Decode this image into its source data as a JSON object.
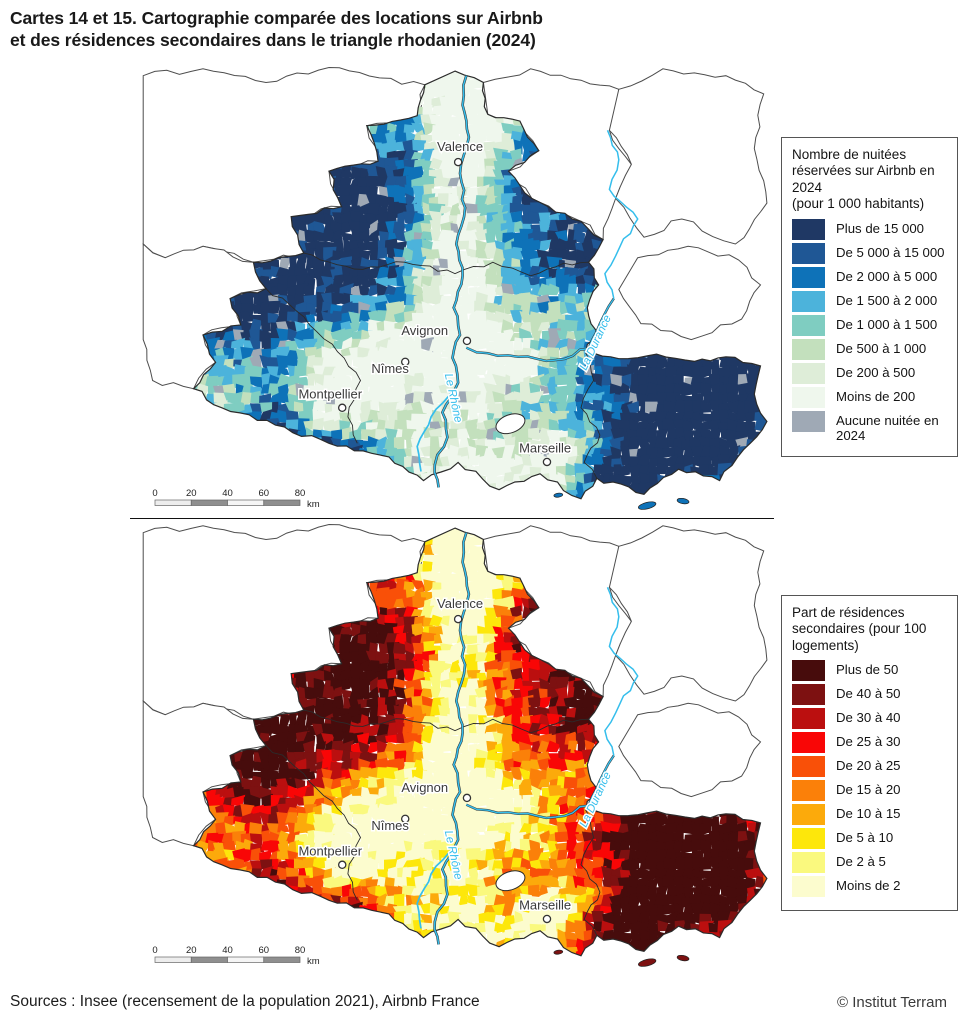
{
  "title": {
    "line1": "Cartes 14 et 15. Cartographie comparée des locations sur Airbnb",
    "line2": "et des résidences secondaires dans le triangle rhodanien (2024)"
  },
  "footer": {
    "sources": "Sources : Insee (recensement de la population 2021), Airbnb France",
    "credit": "© Institut Terram"
  },
  "cities": [
    "Valence",
    "Avignon",
    "Nîmes",
    "Montpellier",
    "Marseille"
  ],
  "rivers": [
    "Le Rhône",
    "La Durance"
  ],
  "river_color": "#35BEEC",
  "scalebar": {
    "ticks": [
      "0",
      "20",
      "40",
      "60",
      "80"
    ],
    "unit": "km"
  },
  "map_airbnb": {
    "legend_title": "Nombre de nuitées réservées sur Airbnb en 2024",
    "legend_subtitle": "(pour 1 000 habitants)",
    "classes": [
      {
        "label": "Plus de 15 000",
        "color": "#1F3864"
      },
      {
        "label": "De 5 000 à 15 000",
        "color": "#1F5795"
      },
      {
        "label": "De 2 000 à 5 000",
        "color": "#0E72B8"
      },
      {
        "label": "De 1 500 à 2 000",
        "color": "#4CB3DB"
      },
      {
        "label": "De 1 000 à 1 500",
        "color": "#7FCDC1"
      },
      {
        "label": "De 500 à 1 000",
        "color": "#C3E0BD"
      },
      {
        "label": "De 200 à 500",
        "color": "#DEEDD8"
      },
      {
        "label": "Moins de 200",
        "color": "#EFF7ED"
      },
      {
        "label": "Aucune nuitée en 2024",
        "color": "#9FA9B5"
      }
    ]
  },
  "map_residences": {
    "legend_title": "Part de résidences secondaires (pour 100 logements)",
    "legend_subtitle": "",
    "classes": [
      {
        "label": "Plus de 50",
        "color": "#470C0C"
      },
      {
        "label": "De 40 à 50",
        "color": "#7D1111"
      },
      {
        "label": "De 30 à 40",
        "color": "#BB0F0F"
      },
      {
        "label": "De 25 à 30",
        "color": "#F90606"
      },
      {
        "label": "De 20 à 25",
        "color": "#F95008"
      },
      {
        "label": "De 15 à 20",
        "color": "#FB8009"
      },
      {
        "label": "De 10 à 15",
        "color": "#FCAA0B"
      },
      {
        "label": "De 5 à 10",
        "color": "#FDE70B"
      },
      {
        "label": "De 2 à 5",
        "color": "#FAF97E"
      },
      {
        "label": "Moins de 2",
        "color": "#FCFCCE"
      }
    ]
  }
}
